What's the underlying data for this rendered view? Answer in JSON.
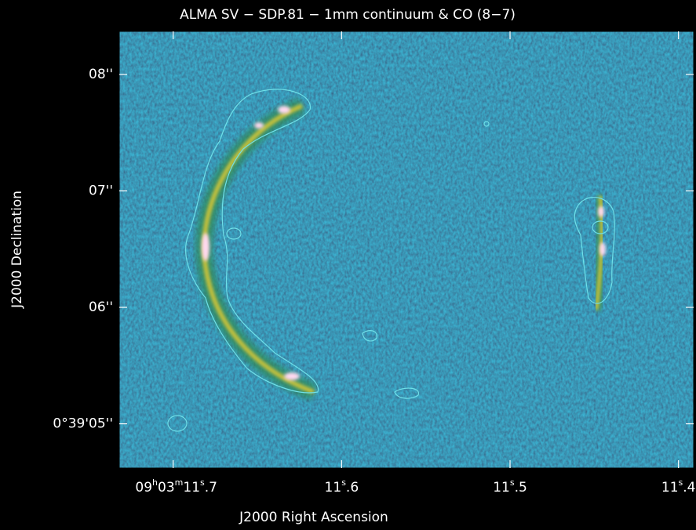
{
  "chart_data": {
    "type": "image",
    "title": "ALMA SV − SDP.81 − 1mm continuum & CO (8−7)",
    "xlabel": "J2000 Right Ascension",
    "ylabel": "J2000 Declination",
    "xlim": [
      11.732,
      11.391
    ],
    "ylim": [
      4.62,
      8.37
    ],
    "xticks": [
      {
        "value": 11.7,
        "label": "09h03m11s.7"
      },
      {
        "value": 11.6,
        "label": "11s.6"
      },
      {
        "value": 11.5,
        "label": "11s.5"
      },
      {
        "value": 11.4,
        "label": "11s.4"
      }
    ],
    "yticks": [
      {
        "value": 8,
        "label": "08''"
      },
      {
        "value": 7,
        "label": "07''"
      },
      {
        "value": 6,
        "label": "06''"
      },
      {
        "value": 5,
        "label": "0°39'05''"
      }
    ]
  }
}
